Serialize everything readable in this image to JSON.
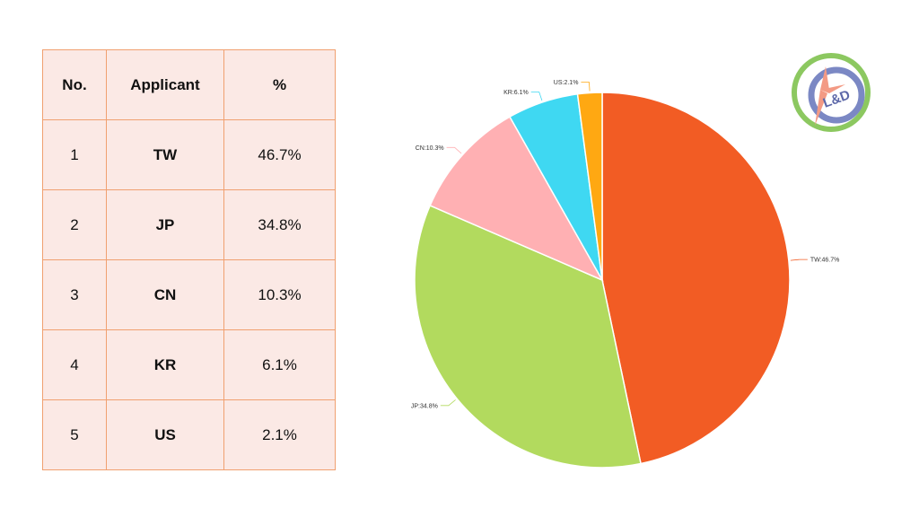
{
  "table": {
    "headers": [
      "No.",
      "Applicant",
      "%"
    ],
    "rows": [
      [
        "1",
        "TW",
        "46.7%"
      ],
      [
        "2",
        "JP",
        "34.8%"
      ],
      [
        "3",
        "CN",
        "10.3%"
      ],
      [
        "4",
        "KR",
        "6.1%"
      ],
      [
        "5",
        "US",
        "2.1%"
      ]
    ]
  },
  "chart_data": {
    "type": "pie",
    "title": "",
    "start_angle_deg": 0,
    "direction": "clockwise",
    "slices": [
      {
        "label": "TW",
        "value": 46.7,
        "display": "TW:46.7%",
        "color": "#f25c24"
      },
      {
        "label": "JP",
        "value": 34.8,
        "display": "JP:34.8%",
        "color": "#b2da5e"
      },
      {
        "label": "CN",
        "value": 10.3,
        "display": "CN:10.3%",
        "color": "#ffb0b3"
      },
      {
        "label": "KR",
        "value": 6.1,
        "display": "KR:6.1%",
        "color": "#3fd8f2"
      },
      {
        "label": "US",
        "value": 2.1,
        "display": "US:2.1%",
        "color": "#ffa812"
      }
    ]
  },
  "logo": {
    "text": "L&D",
    "colors": {
      "ring": "#8cc860",
      "inner": "#7b88c4",
      "blades": "#f39a84"
    }
  }
}
